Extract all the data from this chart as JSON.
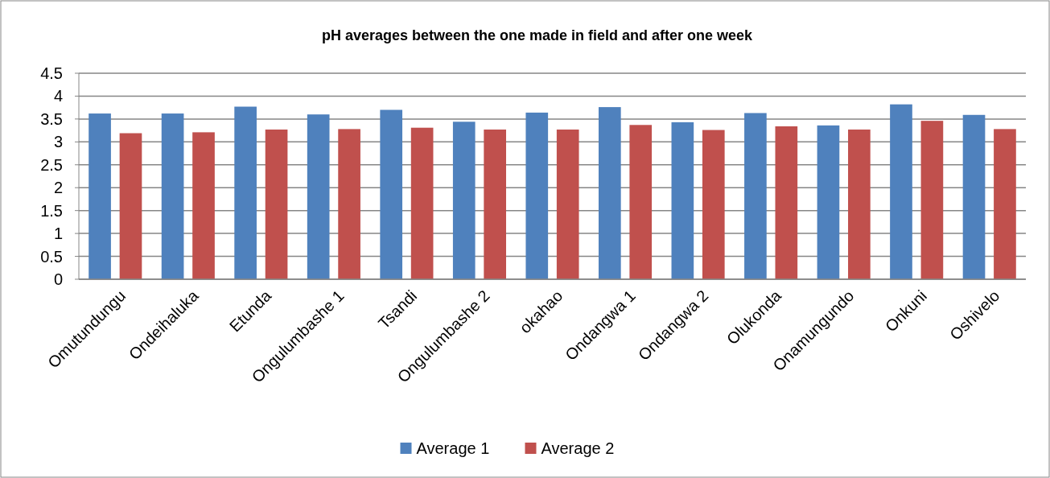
{
  "chart_data": {
    "type": "bar",
    "title": "pH averages  between   the one made in   field and after one week",
    "categories": [
      "Omutundungu",
      "Ondeihaluka",
      "Etunda",
      "Ongulumbashe 1",
      "Tsandi",
      "Ongulumbashe 2",
      "okahao",
      "Ondangwa 1",
      "Ondangwa 2",
      "Olukonda",
      "Onamungundo",
      "Onkuni",
      "Oshivelo"
    ],
    "series": [
      {
        "name": "Average 1",
        "color": "#4f81bd",
        "values": [
          3.62,
          3.62,
          3.77,
          3.6,
          3.7,
          3.44,
          3.64,
          3.76,
          3.43,
          3.63,
          3.36,
          3.82,
          3.59
        ]
      },
      {
        "name": "Average 2",
        "color": "#c0504d",
        "values": [
          3.19,
          3.21,
          3.27,
          3.28,
          3.31,
          3.27,
          3.27,
          3.37,
          3.26,
          3.34,
          3.27,
          3.46,
          3.28
        ]
      }
    ],
    "ylim": [
      0,
      4.5
    ],
    "yticks": [
      0,
      0.5,
      1,
      1.5,
      2,
      2.5,
      3,
      3.5,
      4,
      4.5
    ],
    "grid": "y",
    "legend": "bottom"
  }
}
